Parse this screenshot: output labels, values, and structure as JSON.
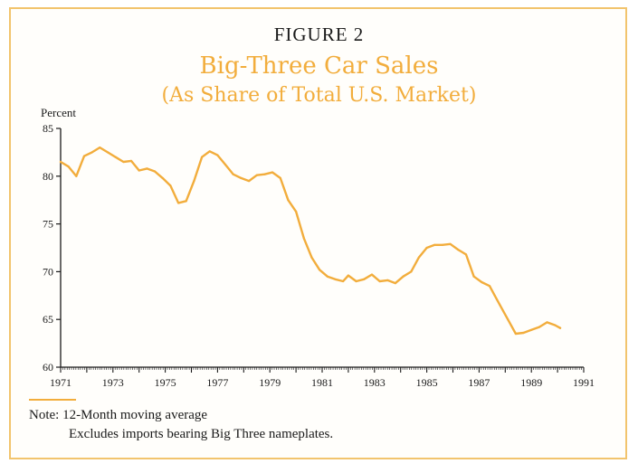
{
  "figure_label": "FIGURE 2",
  "note_line1": "Note: 12-Month moving average",
  "note_line2": "Excludes imports bearing Big Three nameplates.",
  "colors": {
    "accent": "#f2ad3c",
    "frame": "#f2c46d",
    "axis": "#1a1a1a"
  },
  "chart_data": {
    "type": "line",
    "title": "Big-Three Car Sales",
    "subtitle": "(As Share of Total U.S. Market)",
    "ylabel": "Percent",
    "xlabel": "",
    "xlim": [
      1971,
      1991
    ],
    "ylim": [
      60,
      85
    ],
    "x_ticks": [
      "1971",
      "1973",
      "1975",
      "1977",
      "1979",
      "1981",
      "1983",
      "1985",
      "1987",
      "1989",
      "1991"
    ],
    "y_ticks": [
      "60",
      "65",
      "70",
      "75",
      "80",
      "85"
    ],
    "grid": false,
    "legend": "none",
    "series": [
      {
        "x": [
          1971.0,
          1971.3,
          1971.6,
          1971.9,
          1972.2,
          1972.5,
          1972.8,
          1973.1,
          1973.4,
          1973.7,
          1974.0,
          1974.3,
          1974.6,
          1974.9,
          1975.2,
          1975.5,
          1975.8,
          1976.1,
          1976.4,
          1976.7,
          1977.0,
          1977.3,
          1977.6,
          1977.9,
          1978.2,
          1978.5,
          1978.8,
          1979.1,
          1979.4,
          1979.7,
          1980.0,
          1980.3,
          1980.6,
          1980.9,
          1981.2,
          1981.5,
          1981.8,
          1982.0,
          1982.3,
          1982.6,
          1982.9,
          1983.2,
          1983.5,
          1983.8,
          1984.1,
          1984.4,
          1984.7,
          1985.0,
          1985.3,
          1985.6,
          1985.9,
          1986.2,
          1986.5,
          1986.8,
          1987.1,
          1987.4,
          1987.6,
          1987.8,
          1988.1,
          1988.4,
          1988.7,
          1989.0,
          1989.3,
          1989.6,
          1989.9,
          1990.1
        ],
        "values": [
          81.5,
          81.0,
          80.0,
          82.1,
          82.5,
          83.0,
          82.5,
          82.0,
          81.5,
          81.6,
          80.6,
          80.8,
          80.5,
          79.8,
          79.0,
          77.2,
          77.4,
          79.5,
          82.0,
          82.6,
          82.2,
          81.2,
          80.2,
          79.8,
          79.5,
          80.1,
          80.2,
          80.4,
          79.8,
          77.5,
          76.3,
          73.5,
          71.5,
          70.2,
          69.5,
          69.2,
          69.0,
          69.6,
          69.0,
          69.2,
          69.7,
          69.0,
          69.1,
          68.8,
          69.5,
          70.0,
          71.5,
          72.5,
          72.8,
          72.8,
          72.9,
          72.3,
          71.8,
          69.5,
          68.9,
          68.5,
          67.5,
          66.5,
          65.0,
          63.5,
          63.6,
          63.9,
          64.2,
          64.7,
          64.4,
          64.1
        ]
      }
    ]
  }
}
